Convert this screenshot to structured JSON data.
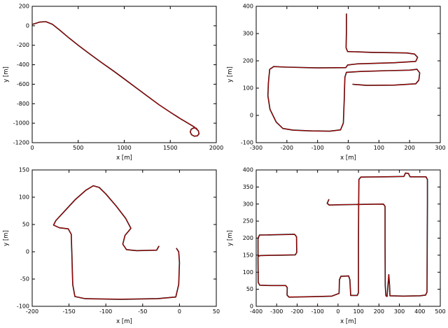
{
  "figure": {
    "background": "#ffffff",
    "line_colors": {
      "primary": "#000000",
      "secondary": "#d40000"
    }
  },
  "chart_data": [
    {
      "type": "line",
      "title": "",
      "xlabel": "x [m]",
      "ylabel": "y [m]",
      "xlim": [
        0,
        2000
      ],
      "ylim": [
        -1200,
        200
      ],
      "xticks": [
        0,
        500,
        1000,
        1500,
        2000
      ],
      "yticks": [
        -1200,
        -1000,
        -800,
        -600,
        -400,
        -200,
        0,
        200
      ],
      "grid": false,
      "legend": "none",
      "series": [
        {
          "name": "trajectory-black",
          "color": "#000000",
          "line_width": 1.6
        },
        {
          "name": "trajectory-red",
          "color": "#d40000",
          "line_width": 0.8
        }
      ],
      "path": [
        [
          5,
          15
        ],
        [
          80,
          38
        ],
        [
          150,
          42
        ],
        [
          220,
          15
        ],
        [
          300,
          -45
        ],
        [
          400,
          -125
        ],
        [
          500,
          -200
        ],
        [
          620,
          -285
        ],
        [
          750,
          -375
        ],
        [
          880,
          -462
        ],
        [
          1000,
          -545
        ],
        [
          1120,
          -630
        ],
        [
          1250,
          -722
        ],
        [
          1380,
          -812
        ],
        [
          1500,
          -888
        ],
        [
          1600,
          -948
        ],
        [
          1690,
          -998
        ],
        [
          1760,
          -1038
        ],
        [
          1805,
          -1078
        ],
        [
          1812,
          -1110
        ],
        [
          1793,
          -1130
        ],
        [
          1760,
          -1133
        ],
        [
          1731,
          -1118
        ],
        [
          1717,
          -1090
        ],
        [
          1727,
          -1062
        ],
        [
          1756,
          -1048
        ],
        [
          1786,
          -1053
        ]
      ]
    },
    {
      "type": "line",
      "title": "",
      "xlabel": "x [m]",
      "ylabel": "y [m]",
      "xlim": [
        -300,
        300
      ],
      "ylim": [
        -100,
        400
      ],
      "xticks": [
        -300,
        -200,
        -100,
        0,
        100,
        200,
        300
      ],
      "yticks": [
        -100,
        0,
        100,
        200,
        300,
        400
      ],
      "grid": false,
      "legend": "none",
      "series": [
        {
          "name": "trajectory-black",
          "color": "#000000",
          "line_width": 1.6
        },
        {
          "name": "trajectory-red",
          "color": "#d40000",
          "line_width": 0.8
        }
      ],
      "path": [
        [
          -6,
          372
        ],
        [
          -6,
          310
        ],
        [
          -7,
          248
        ],
        [
          -2,
          234
        ],
        [
          80,
          231
        ],
        [
          190,
          229
        ],
        [
          216,
          225
        ],
        [
          226,
          213
        ],
        [
          220,
          198
        ],
        [
          150,
          193
        ],
        [
          30,
          189
        ],
        [
          -2,
          185
        ],
        [
          -8,
          175
        ],
        [
          -100,
          174
        ],
        [
          -200,
          177
        ],
        [
          -243,
          179
        ],
        [
          -256,
          169
        ],
        [
          -260,
          122
        ],
        [
          -262,
          72
        ],
        [
          -255,
          22
        ],
        [
          -235,
          -24
        ],
        [
          -213,
          -48
        ],
        [
          -180,
          -54
        ],
        [
          -120,
          -57
        ],
        [
          -60,
          -58
        ],
        [
          -25,
          -53
        ],
        [
          -16,
          -28
        ],
        [
          -13,
          60
        ],
        [
          -11,
          140
        ],
        [
          -6,
          158
        ],
        [
          40,
          161
        ],
        [
          130,
          164
        ],
        [
          200,
          166
        ],
        [
          224,
          169
        ],
        [
          233,
          156
        ],
        [
          230,
          129
        ],
        [
          220,
          116
        ],
        [
          150,
          111
        ],
        [
          60,
          110
        ],
        [
          15,
          114
        ]
      ]
    },
    {
      "type": "line",
      "title": "",
      "xlabel": "x [m]",
      "ylabel": "y [m]",
      "xlim": [
        -200,
        50
      ],
      "ylim": [
        -100,
        150
      ],
      "xticks": [
        -200,
        -150,
        -100,
        -50,
        0,
        50
      ],
      "yticks": [
        -100,
        -50,
        0,
        50,
        100,
        150
      ],
      "grid": false,
      "legend": "none",
      "series": [
        {
          "name": "trajectory-black",
          "color": "#000000",
          "line_width": 1.6
        },
        {
          "name": "trajectory-red",
          "color": "#d40000",
          "line_width": 0.8
        }
      ],
      "path": [
        [
          -28,
          10
        ],
        [
          -31,
          3
        ],
        [
          -58,
          2
        ],
        [
          -72,
          4
        ],
        [
          -77,
          14
        ],
        [
          -74,
          30
        ],
        [
          -66,
          43
        ],
        [
          -73,
          61
        ],
        [
          -86,
          84
        ],
        [
          -100,
          106
        ],
        [
          -109,
          118
        ],
        [
          -117,
          121
        ],
        [
          -127,
          113
        ],
        [
          -142,
          95
        ],
        [
          -157,
          73
        ],
        [
          -168,
          57
        ],
        [
          -171,
          49
        ],
        [
          -163,
          44
        ],
        [
          -151,
          42
        ],
        [
          -147,
          32
        ],
        [
          -146,
          -10
        ],
        [
          -145,
          -60
        ],
        [
          -142,
          -82
        ],
        [
          -128,
          -86
        ],
        [
          -80,
          -87
        ],
        [
          -30,
          -86
        ],
        [
          -5,
          -83
        ],
        [
          -1,
          -60
        ],
        [
          0,
          -20
        ],
        [
          -1,
          0
        ],
        [
          -4,
          6
        ]
      ]
    },
    {
      "type": "line",
      "title": "",
      "xlabel": "x [m]",
      "ylabel": "y [m]",
      "xlim": [
        -400,
        500
      ],
      "ylim": [
        0,
        400
      ],
      "xticks": [
        -400,
        -300,
        -200,
        -100,
        0,
        100,
        200,
        300,
        400,
        500
      ],
      "yticks": [
        0,
        50,
        100,
        150,
        200,
        250,
        300,
        350,
        400
      ],
      "grid": false,
      "legend": "none",
      "series": [
        {
          "name": "trajectory-black",
          "color": "#000000",
          "line_width": 1.6
        },
        {
          "name": "trajectory-red",
          "color": "#d40000",
          "line_width": 0.8
        }
      ],
      "path": [
        [
          -45,
          313
        ],
        [
          -53,
          302
        ],
        [
          -43,
          297
        ],
        [
          20,
          298
        ],
        [
          130,
          299
        ],
        [
          222,
          300
        ],
        [
          230,
          293
        ],
        [
          230,
          180
        ],
        [
          231,
          60
        ],
        [
          234,
          31
        ],
        [
          240,
          29
        ],
        [
          244,
          60
        ],
        [
          248,
          93
        ],
        [
          252,
          62
        ],
        [
          254,
          31
        ],
        [
          320,
          30
        ],
        [
          400,
          31
        ],
        [
          428,
          33
        ],
        [
          435,
          42
        ],
        [
          436,
          160
        ],
        [
          437,
          300
        ],
        [
          437,
          372
        ],
        [
          430,
          380
        ],
        [
          352,
          380
        ],
        [
          344,
          390
        ],
        [
          330,
          391
        ],
        [
          322,
          381
        ],
        [
          230,
          380
        ],
        [
          112,
          379
        ],
        [
          102,
          372
        ],
        [
          101,
          300
        ],
        [
          100,
          180
        ],
        [
          100,
          40
        ],
        [
          94,
          32
        ],
        [
          62,
          32
        ],
        [
          58,
          78
        ],
        [
          52,
          89
        ],
        [
          14,
          88
        ],
        [
          7,
          78
        ],
        [
          5,
          38
        ],
        [
          -30,
          30
        ],
        [
          -140,
          28
        ],
        [
          -240,
          27
        ],
        [
          -249,
          33
        ],
        [
          -248,
          55
        ],
        [
          -256,
          61
        ],
        [
          -330,
          61
        ],
        [
          -383,
          62
        ],
        [
          -390,
          70
        ],
        [
          -391,
          130
        ],
        [
          -391,
          200
        ],
        [
          -384,
          209
        ],
        [
          -300,
          210
        ],
        [
          -212,
          211
        ],
        [
          -203,
          204
        ],
        [
          -202,
          158
        ],
        [
          -209,
          151
        ],
        [
          -300,
          150
        ],
        [
          -380,
          149
        ],
        [
          -388,
          147
        ]
      ]
    }
  ]
}
